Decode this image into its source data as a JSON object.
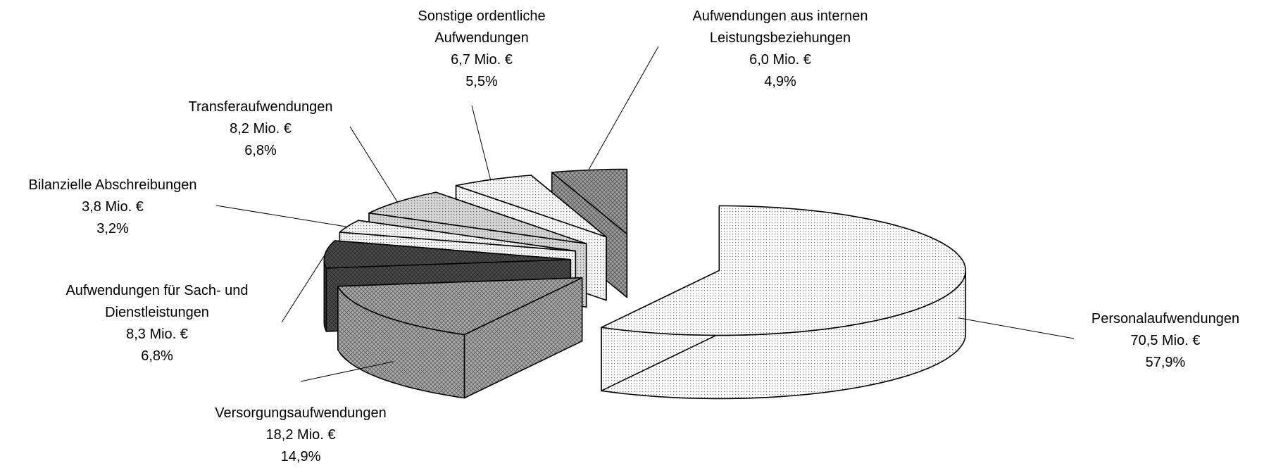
{
  "chart_data": {
    "type": "pie",
    "style": "3d-exploded",
    "categories": [
      "Personalaufwendungen",
      "Versorgungsaufwendungen",
      "Aufwendungen für Sach- und Dienstleistungen",
      "Bilanzielle Abschreibungen",
      "Transferaufwendungen",
      "Sonstige ordentliche Aufwendungen",
      "Aufwendungen aus internen Leistungsbeziehungen"
    ],
    "values": [
      70.5,
      18.2,
      8.3,
      3.8,
      8.2,
      6.7,
      6.0
    ],
    "value_labels": [
      "70,5 Mio. €",
      "18,2 Mio. €",
      "8,3 Mio. €",
      "3,8 Mio. €",
      "8,2 Mio. €",
      "6,7 Mio. €",
      "6,0 Mio. €"
    ],
    "percentages": [
      57.9,
      14.9,
      6.8,
      3.2,
      6.8,
      5.5,
      4.9
    ],
    "percentage_labels": [
      "57,9%",
      "14,9%",
      "6,8%",
      "3,2%",
      "6,8%",
      "5,5%",
      "4,9%"
    ],
    "colors": [
      "#ffffff",
      "#a8a8a8",
      "#4a4a4a",
      "#f2f2f2",
      "#d4d4d4",
      "#f7f7f7",
      "#9a9a9a"
    ]
  }
}
